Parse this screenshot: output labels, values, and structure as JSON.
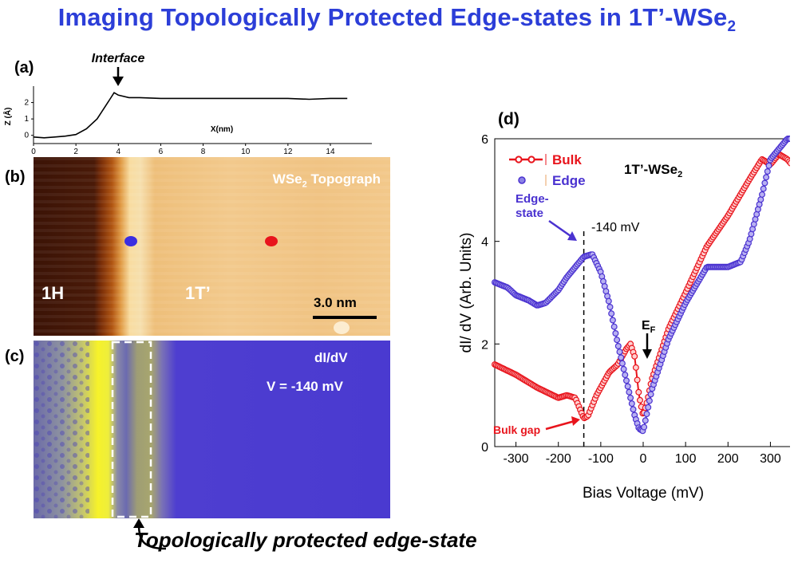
{
  "title": {
    "main": "Imaging Topologically Protected Edge-states in 1T’-WSe",
    "sub": "2"
  },
  "panel_a": {
    "label": "(a)",
    "annotation": "Interface",
    "xlabel": "X(nm)",
    "ylabel": "Z (Å)",
    "xticks": [
      "0",
      "2",
      "4",
      "6",
      "8",
      "10",
      "12",
      "14"
    ],
    "yticks": [
      "0",
      "1",
      "2"
    ]
  },
  "panel_b": {
    "label": "(b)",
    "topo_main": "WSe",
    "topo_sub": "2",
    "topo_tail": " Topograph",
    "region_left": "1H",
    "region_right": "1T’",
    "scale_bar": "3.0 nm",
    "marker_colors": {
      "edge": "#3a2ee0",
      "bulk": "#e8141c"
    }
  },
  "panel_c": {
    "label": "(c)",
    "map_label": "dI/dV",
    "bias_label": "V = -140 mV",
    "caption": "Topologically protected edge-state"
  },
  "chart_data": [
    {
      "type": "line",
      "panel": "(a)",
      "x": [
        0,
        0.5,
        1,
        1.5,
        2,
        2.5,
        3,
        3.3,
        3.6,
        3.8,
        4,
        4.5,
        5,
        6,
        7,
        8,
        9,
        10,
        11,
        12,
        13,
        14,
        14.8
      ],
      "y": [
        -0.1,
        -0.15,
        -0.1,
        -0.05,
        0.05,
        0.4,
        1.0,
        1.6,
        2.2,
        2.6,
        2.45,
        2.3,
        2.3,
        2.25,
        2.25,
        2.25,
        2.25,
        2.25,
        2.25,
        2.25,
        2.2,
        2.25,
        2.25
      ],
      "xlim": [
        0,
        15
      ],
      "ylim": [
        -0.5,
        3
      ],
      "xlabel": "X(nm)",
      "ylabel": "Z (Å)"
    },
    {
      "type": "scatter",
      "panel": "(d)",
      "label": "(d)",
      "title": "1T’-WSe2",
      "xlabel": "Bias Voltage (mV)",
      "ylabel": "dI/ dV (Arb. Units)",
      "xlim": [
        -350,
        350
      ],
      "ylim": [
        0,
        6
      ],
      "xticks": [
        -300,
        -200,
        -100,
        0,
        100,
        200,
        300
      ],
      "yticks": [
        0,
        2,
        4,
        6
      ],
      "legend_position": "top-left",
      "series": [
        {
          "name": "Bulk",
          "color": "#e8141c",
          "x": [
            -350,
            -300,
            -250,
            -200,
            -180,
            -160,
            -150,
            -140,
            -130,
            -110,
            -80,
            -60,
            -40,
            -30,
            -20,
            -10,
            0,
            10,
            20,
            40,
            60,
            100,
            150,
            200,
            250,
            280,
            300,
            320,
            340,
            350
          ],
          "y": [
            1.6,
            1.4,
            1.15,
            0.95,
            1.0,
            0.95,
            0.75,
            0.55,
            0.6,
            1.0,
            1.45,
            1.6,
            1.9,
            2.0,
            1.75,
            1.0,
            0.6,
            0.9,
            1.3,
            1.8,
            2.3,
            3.0,
            3.9,
            4.5,
            5.2,
            5.6,
            5.5,
            5.7,
            5.6,
            5.5
          ]
        },
        {
          "name": "Edge",
          "color": "#4a32d0",
          "x": [
            -350,
            -320,
            -300,
            -270,
            -250,
            -230,
            -200,
            -180,
            -160,
            -140,
            -120,
            -100,
            -80,
            -60,
            -40,
            -20,
            -10,
            0,
            10,
            20,
            40,
            60,
            100,
            150,
            200,
            230,
            250,
            280,
            300,
            320,
            340,
            350
          ],
          "y": [
            3.2,
            3.1,
            2.95,
            2.85,
            2.75,
            2.8,
            3.05,
            3.3,
            3.5,
            3.7,
            3.75,
            3.4,
            2.8,
            2.0,
            1.3,
            0.6,
            0.35,
            0.3,
            0.7,
            1.1,
            1.6,
            2.1,
            2.8,
            3.5,
            3.5,
            3.6,
            4.0,
            4.9,
            5.6,
            5.8,
            6.0,
            6.0
          ]
        }
      ],
      "annotations": {
        "edge_state": "Edge-\nstate",
        "edge_state_line1": "Edge-",
        "edge_state_line2": "state",
        "minus140": "-140 mV",
        "fermi_main": "E",
        "fermi_sub": "F",
        "bulk_gap": "Bulk gap",
        "dashed_line_x": -140
      }
    }
  ]
}
